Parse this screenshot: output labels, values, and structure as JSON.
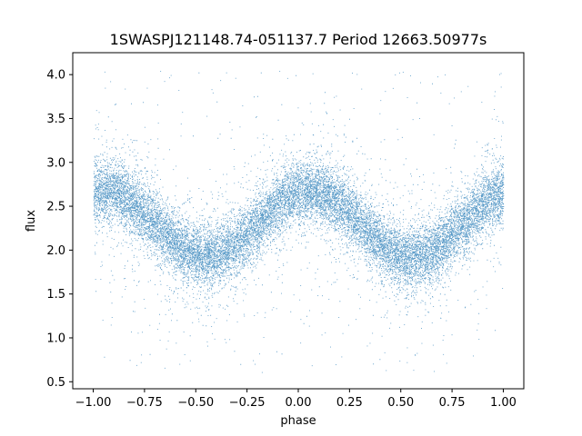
{
  "chart_data": {
    "type": "scatter",
    "title": "1SWASPJ121148.74-051137.7 Period 12663.50977s",
    "xlabel": "phase",
    "ylabel": "flux",
    "xlim": [
      -1.1,
      1.1
    ],
    "ylim": [
      0.42,
      4.25
    ],
    "xticks": [
      -1.0,
      -0.75,
      -0.5,
      -0.25,
      0.0,
      0.25,
      0.5,
      0.75,
      1.0
    ],
    "xtick_labels": [
      "−1.00",
      "−0.75",
      "−0.50",
      "−0.25",
      "0.00",
      "0.25",
      "0.50",
      "0.75",
      "1.00"
    ],
    "yticks": [
      0.5,
      1.0,
      1.5,
      2.0,
      2.5,
      3.0,
      3.5,
      4.0
    ],
    "ytick_labels": [
      "0.5",
      "1.0",
      "1.5",
      "2.0",
      "2.5",
      "3.0",
      "3.5",
      "4.0"
    ],
    "grid": false,
    "point_color": "#1f77b4",
    "phase_range": [
      -1.0,
      1.0
    ],
    "light_curve": {
      "mean_flux": 2.3,
      "amplitude": 0.38,
      "max_phase": 0.05,
      "min_phases": [
        -0.45,
        0.55
      ]
    }
  }
}
